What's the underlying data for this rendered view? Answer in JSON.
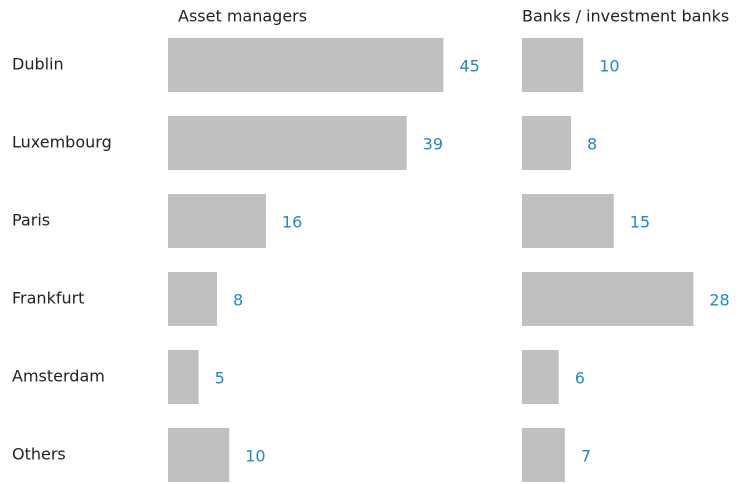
{
  "chart_data": {
    "type": "bar",
    "orientation": "horizontal",
    "categories": [
      "Dublin",
      "Luxembourg",
      "Paris",
      "Frankfurt",
      "Amsterdam",
      "Others"
    ],
    "series": [
      {
        "name": "Asset managers",
        "color": "#bfbfbf",
        "values": [
          45,
          39,
          16,
          8,
          5,
          10
        ]
      },
      {
        "name": "Banks / investment banks",
        "color": "#bfbfbf",
        "values": [
          10,
          8,
          15,
          28,
          6,
          7
        ]
      }
    ]
  }
}
